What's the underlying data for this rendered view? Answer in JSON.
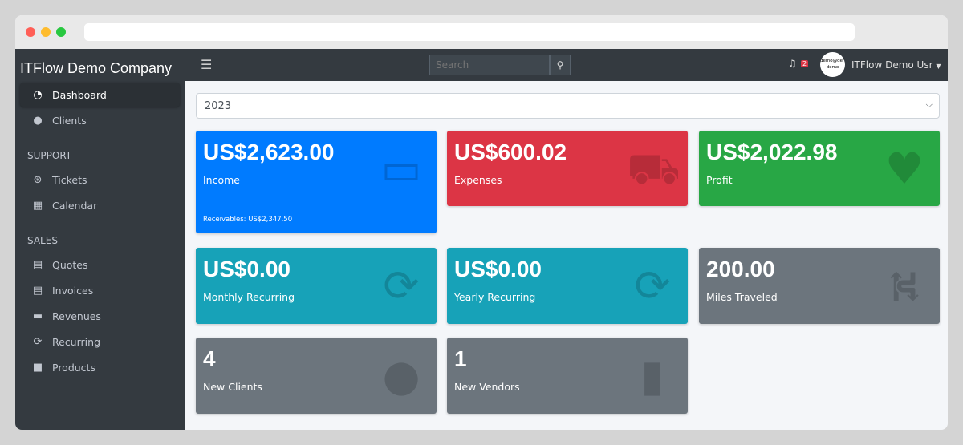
{
  "window": {
    "colors": {
      "red": "#ff5f57",
      "yellow": "#febc2e",
      "green": "#28c840"
    }
  },
  "sidebar": {
    "brand": "ITFlow Demo Company",
    "items": [
      {
        "label": "Dashboard",
        "icon": "tachometer-icon"
      },
      {
        "label": "Clients",
        "icon": "users-icon"
      }
    ],
    "support_header": "SUPPORT",
    "support": [
      {
        "label": "Tickets",
        "icon": "life-ring-icon"
      },
      {
        "label": "Calendar",
        "icon": "calendar-icon"
      }
    ],
    "sales_header": "SALES",
    "sales": [
      {
        "label": "Quotes",
        "icon": "file-icon"
      },
      {
        "label": "Invoices",
        "icon": "invoice-icon"
      },
      {
        "label": "Revenues",
        "icon": "credit-card-icon"
      },
      {
        "label": "Recurring",
        "icon": "sync-icon"
      },
      {
        "label": "Products",
        "icon": "box-icon"
      }
    ]
  },
  "topbar": {
    "search_placeholder": "Search",
    "notifications": "2",
    "avatar_text": "demo@demo demo",
    "user": "ITFlow Demo Usr"
  },
  "main": {
    "year": "2023",
    "cards": [
      {
        "value": "US$2,623.00",
        "label": "Income",
        "footer": "Receivables: US$2,347.50",
        "color": "#007bff"
      },
      {
        "value": "US$600.02",
        "label": "Expenses",
        "color": "#dc3545"
      },
      {
        "value": "US$2,022.98",
        "label": "Profit",
        "color": "#28a745"
      },
      {
        "value": "US$0.00",
        "label": "Monthly Recurring",
        "color": "#17a2b8"
      },
      {
        "value": "US$0.00",
        "label": "Yearly Recurring",
        "color": "#17a2b8"
      },
      {
        "value": "200.00",
        "label": "Miles Traveled",
        "color": "#6c757d"
      },
      {
        "value": "4",
        "label": "New Clients",
        "color": "#6c757d"
      },
      {
        "value": "1",
        "label": "New Vendors",
        "color": "#6c757d"
      }
    ]
  }
}
